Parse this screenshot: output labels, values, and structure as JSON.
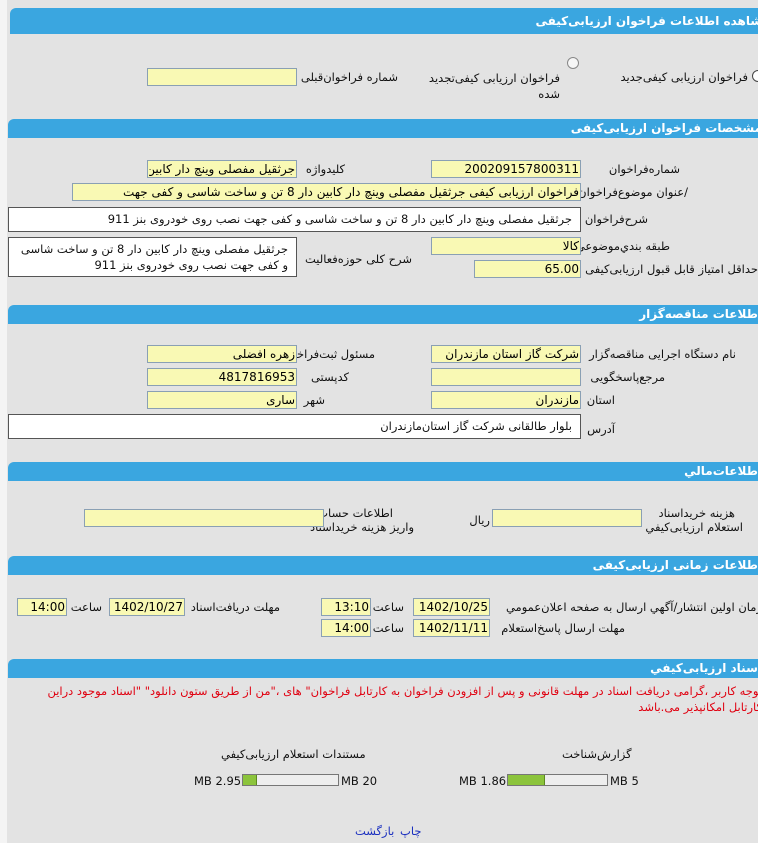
{
  "colors": {
    "header": "#3aa6e0",
    "input_bg": "#f9f9b4",
    "notice": "#e00010",
    "progress": "#8cc43c",
    "link": "#1a2fbf"
  },
  "page_title": "مشاهده اطلاعات فراخوان ارزیابی‌کیفی",
  "type_select": {
    "option_new": "فراخوان ارزیابی کیفی‌جدید",
    "option_renewed": "فراخوان ارزیابی کیفی‌تجدید شده",
    "previous_number_label": "شماره فراخوان‌قبلی",
    "previous_number_value": ""
  },
  "specs": {
    "title": "مشخصات فراخوان ارزیابی‌کیفی",
    "number_label": "شماره‌فراخوان",
    "number_value": "200209157800311",
    "keyword_label": "کلیدواژه",
    "keyword_value": "جرثقیل مفصلی وینچ دار کابین",
    "subject_label": "/عنوان موضوع‌فراخوان",
    "subject_value": "فراخوان ارزیابی کیفی جرثقیل مفصلی وینچ دار کابین دار 8 تن و ساخت شاسی و کفی جهت",
    "description_label": "شرح‌فراخوان",
    "description_value": "جرثقیل مفصلی وینچ دار کابین دار 8 تن و ساخت شاسی و کفی جهت نصب روی خودروی بنز 911",
    "category_label": "طبقه بندي‌موضوعي",
    "category_value": "کالا",
    "scope_label": "شرح کلی حوزه‌فعالیت",
    "scope_value": "جرثقیل مفصلی وینچ دار کابین دار 8 تن و ساخت شاسی و کفی جهت نصب روی خودروی بنز 911",
    "min_score_label": "حداقل امتیاز قابل قبول ارزیابی‌کیفی",
    "min_score_value": "65.00"
  },
  "tenderer": {
    "title": "اطلاعات مناقصه‌گزار",
    "org_label": "نام دستگاه اجرایی مناقصه‌گزار",
    "org_value": "شرکت گاز استان مازندران",
    "registrar_label": "مسئول ثبت‌فراخوان",
    "registrar_value": "زهره افضلی",
    "reference_label": "مرجع‌پاسخگویی",
    "reference_value": "",
    "postal_label": "کدپستی",
    "postal_value": "4817816953",
    "province_label": "استان",
    "province_value": "مازندران",
    "city_label": "شهر",
    "city_value": "ساری",
    "address_label": "آدرس",
    "address_value": "بلوار طالقانی شرکت گاز استان‌مازندران"
  },
  "financial": {
    "title": "اطلاعات‌مالي",
    "fee_label_1": "هزینه خریداسناد",
    "fee_label_2": "استعلام ارزیابی‌کیفي",
    "fee_value": "",
    "currency": "ریال",
    "account_label_1": "اطلاعات حساب‌جهت",
    "account_label_2": "واریز هزینه خریداسناد",
    "account_value": ""
  },
  "timing": {
    "title": "اطلاعات زمانی ارزیابی‌کیفی",
    "publish_label": "زمان اولین انتشار/آگهي ارسال به صفحه اعلان‌عمومي",
    "publish_date": "1402/10/25",
    "publish_time": "13:10",
    "docs_deadline_label": "مهلت دریافت‌اسناد",
    "docs_deadline_date": "1402/10/27",
    "docs_deadline_time": "14:00",
    "reply_deadline_label": "مهلت ارسال پاسخ‌استعلام",
    "reply_deadline_date": "1402/11/11",
    "reply_deadline_time": "14:00",
    "time_label": "ساعت"
  },
  "documents": {
    "title": "اسناد ارزیابی‌کیفي",
    "notice_line1": "توجه کاربر ،گرامی دریافت اسناد در مهلت قانونی و پس از افزودن فراخوان به کارتابل فراخوان\" های ،\"من از طریق ستون دانلود\" \"اسناد موجود دراین",
    "notice_line2": "کارتابل امکانپذیر می.باشد",
    "files": [
      {
        "name": "گزارش‌شناخت",
        "size": "1.86 MB",
        "max": "5 MB",
        "fraction": 0.372
      },
      {
        "name": "مستندات استعلام ارزیابی‌کیفي",
        "size": "2.95 MB",
        "max": "20 MB",
        "fraction": 0.1475
      }
    ]
  },
  "footer": {
    "print": "چاپ",
    "back": "بازگشت"
  }
}
